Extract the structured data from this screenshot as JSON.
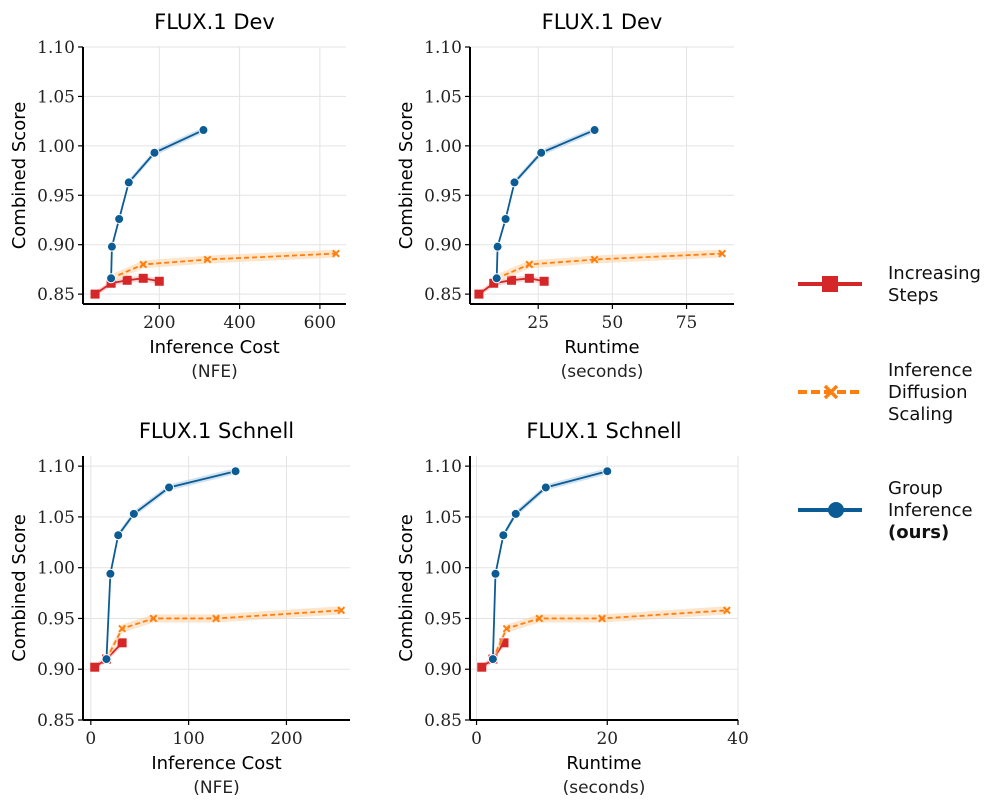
{
  "series_meta": [
    {
      "key": "steps",
      "name": "Increasing Steps",
      "color": "#d62728",
      "fill": "#f4b6b6",
      "marker": "square",
      "dash": "none"
    },
    {
      "key": "ids",
      "name": "Inference Diffusion Scaling",
      "color": "#ff7f0e",
      "fill": "#fdd0a2",
      "marker": "x",
      "dash": "5,3"
    },
    {
      "key": "group",
      "name": "Group Inference (ours)",
      "color": "#0b5c95",
      "fill": "#a9c9e3",
      "marker": "circle",
      "dash": "none"
    }
  ],
  "legend": {
    "items": [
      {
        "lines": [
          "Increasing",
          "Steps"
        ],
        "bold_last": false
      },
      {
        "lines": [
          "Inference",
          "Diffusion",
          "Scaling"
        ],
        "bold_last": false
      },
      {
        "lines": [
          "Group",
          "Inference",
          "(ours)"
        ],
        "bold_last": true
      }
    ]
  },
  "chart_data": [
    {
      "type": "line",
      "title": "FLUX.1 Dev",
      "xlabel": "Inference Cost",
      "xlabel_sub": "(NFE)",
      "ylabel": "Combined Score",
      "xlim": [
        10,
        665
      ],
      "ylim": [
        0.84,
        1.1
      ],
      "xticks": [
        200,
        400,
        600
      ],
      "xticklabels": [
        "200",
        "400",
        "600"
      ],
      "yticks": [
        0.85,
        0.9,
        0.95,
        1.0,
        1.05,
        1.1
      ],
      "yticklabels": [
        "0.85",
        "0.90",
        "0.95",
        "1.00",
        "1.05",
        "1.10"
      ],
      "grid": true,
      "series": [
        {
          "key": "steps",
          "name": "Increasing Steps",
          "x": [
            40,
            80,
            120,
            160,
            200
          ],
          "y": [
            0.85,
            0.861,
            0.864,
            0.866,
            0.863
          ],
          "band": 0.003
        },
        {
          "key": "ids",
          "name": "Inference Diffusion Scaling",
          "x": [
            80,
            160,
            320,
            640
          ],
          "y": [
            0.866,
            0.88,
            0.885,
            0.891
          ],
          "band": 0.004
        },
        {
          "key": "group",
          "name": "Group Inference (ours)",
          "x": [
            80,
            82,
            100,
            124,
            188,
            310
          ],
          "y": [
            0.866,
            0.898,
            0.926,
            0.963,
            0.993,
            1.016
          ],
          "band": 0.003
        }
      ]
    },
    {
      "type": "line",
      "title": "FLUX.1 Dev",
      "xlabel": "Runtime",
      "xlabel_sub": "(seconds)",
      "ylabel": "Combined Score",
      "xlim": [
        2,
        91
      ],
      "ylim": [
        0.84,
        1.1
      ],
      "xticks": [
        25,
        50,
        75
      ],
      "xticklabels": [
        "25",
        "50",
        "75"
      ],
      "yticks": [
        0.85,
        0.9,
        0.95,
        1.0,
        1.05,
        1.1
      ],
      "yticklabels": [
        "0.85",
        "0.90",
        "0.95",
        "1.00",
        "1.05",
        "1.10"
      ],
      "grid": true,
      "series": [
        {
          "key": "steps",
          "name": "Increasing Steps",
          "x": [
            5,
            10,
            16,
            22,
            27
          ],
          "y": [
            0.85,
            0.861,
            0.864,
            0.866,
            0.863
          ],
          "band": 0.003
        },
        {
          "key": "ids",
          "name": "Inference Diffusion Scaling",
          "x": [
            11,
            22,
            44,
            87
          ],
          "y": [
            0.866,
            0.88,
            0.885,
            0.891
          ],
          "band": 0.004
        },
        {
          "key": "group",
          "name": "Group Inference (ours)",
          "x": [
            11,
            11.3,
            14,
            17,
            26,
            44
          ],
          "y": [
            0.866,
            0.898,
            0.926,
            0.963,
            0.993,
            1.016
          ],
          "band": 0.003
        }
      ]
    },
    {
      "type": "line",
      "title": "FLUX.1 Schnell",
      "xlabel": "Inference Cost",
      "xlabel_sub": "(NFE)",
      "ylabel": "Combined Score",
      "xlim": [
        -8,
        265
      ],
      "ylim": [
        0.85,
        1.11
      ],
      "xticks": [
        0,
        100,
        200
      ],
      "xticklabels": [
        "0",
        "100",
        "200"
      ],
      "yticks": [
        0.85,
        0.9,
        0.95,
        1.0,
        1.05,
        1.1
      ],
      "yticklabels": [
        "0.85",
        "0.90",
        "0.95",
        "1.00",
        "1.05",
        "1.10"
      ],
      "grid": true,
      "series": [
        {
          "key": "steps",
          "name": "Increasing Steps",
          "x": [
            4,
            16,
            32
          ],
          "y": [
            0.902,
            0.91,
            0.926
          ],
          "band": 0.003
        },
        {
          "key": "ids",
          "name": "Inference Diffusion Scaling",
          "x": [
            16,
            32,
            64,
            128,
            256
          ],
          "y": [
            0.91,
            0.94,
            0.95,
            0.95,
            0.958
          ],
          "band": 0.004
        },
        {
          "key": "group",
          "name": "Group Inference (ours)",
          "x": [
            16,
            20,
            28,
            44,
            80,
            148
          ],
          "y": [
            0.91,
            0.994,
            1.032,
            1.053,
            1.079,
            1.095
          ],
          "band": 0.003
        }
      ]
    },
    {
      "type": "line",
      "title": "FLUX.1 Schnell",
      "xlabel": "Runtime",
      "xlabel_sub": "(seconds)",
      "ylabel": "Combined Score",
      "xlim": [
        -1,
        40
      ],
      "ylim": [
        0.85,
        1.11
      ],
      "xticks": [
        0,
        20,
        40
      ],
      "xticklabels": [
        "0",
        "20",
        "40"
      ],
      "yticks": [
        0.85,
        0.9,
        0.95,
        1.0,
        1.05,
        1.1
      ],
      "yticklabels": [
        "0.85",
        "0.90",
        "0.95",
        "1.00",
        "1.05",
        "1.10"
      ],
      "grid": true,
      "series": [
        {
          "key": "steps",
          "name": "Increasing Steps",
          "x": [
            0.8,
            2.5,
            4.2
          ],
          "y": [
            0.902,
            0.91,
            0.926
          ],
          "band": 0.003
        },
        {
          "key": "ids",
          "name": "Inference Diffusion Scaling",
          "x": [
            2.5,
            4.6,
            9.6,
            19.2,
            38.3
          ],
          "y": [
            0.91,
            0.94,
            0.95,
            0.95,
            0.958
          ],
          "band": 0.004
        },
        {
          "key": "group",
          "name": "Group Inference (ours)",
          "x": [
            2.5,
            2.9,
            4.1,
            6.0,
            10.6,
            20.0
          ],
          "y": [
            0.91,
            0.994,
            1.032,
            1.053,
            1.079,
            1.095
          ],
          "band": 0.003
        }
      ]
    }
  ]
}
